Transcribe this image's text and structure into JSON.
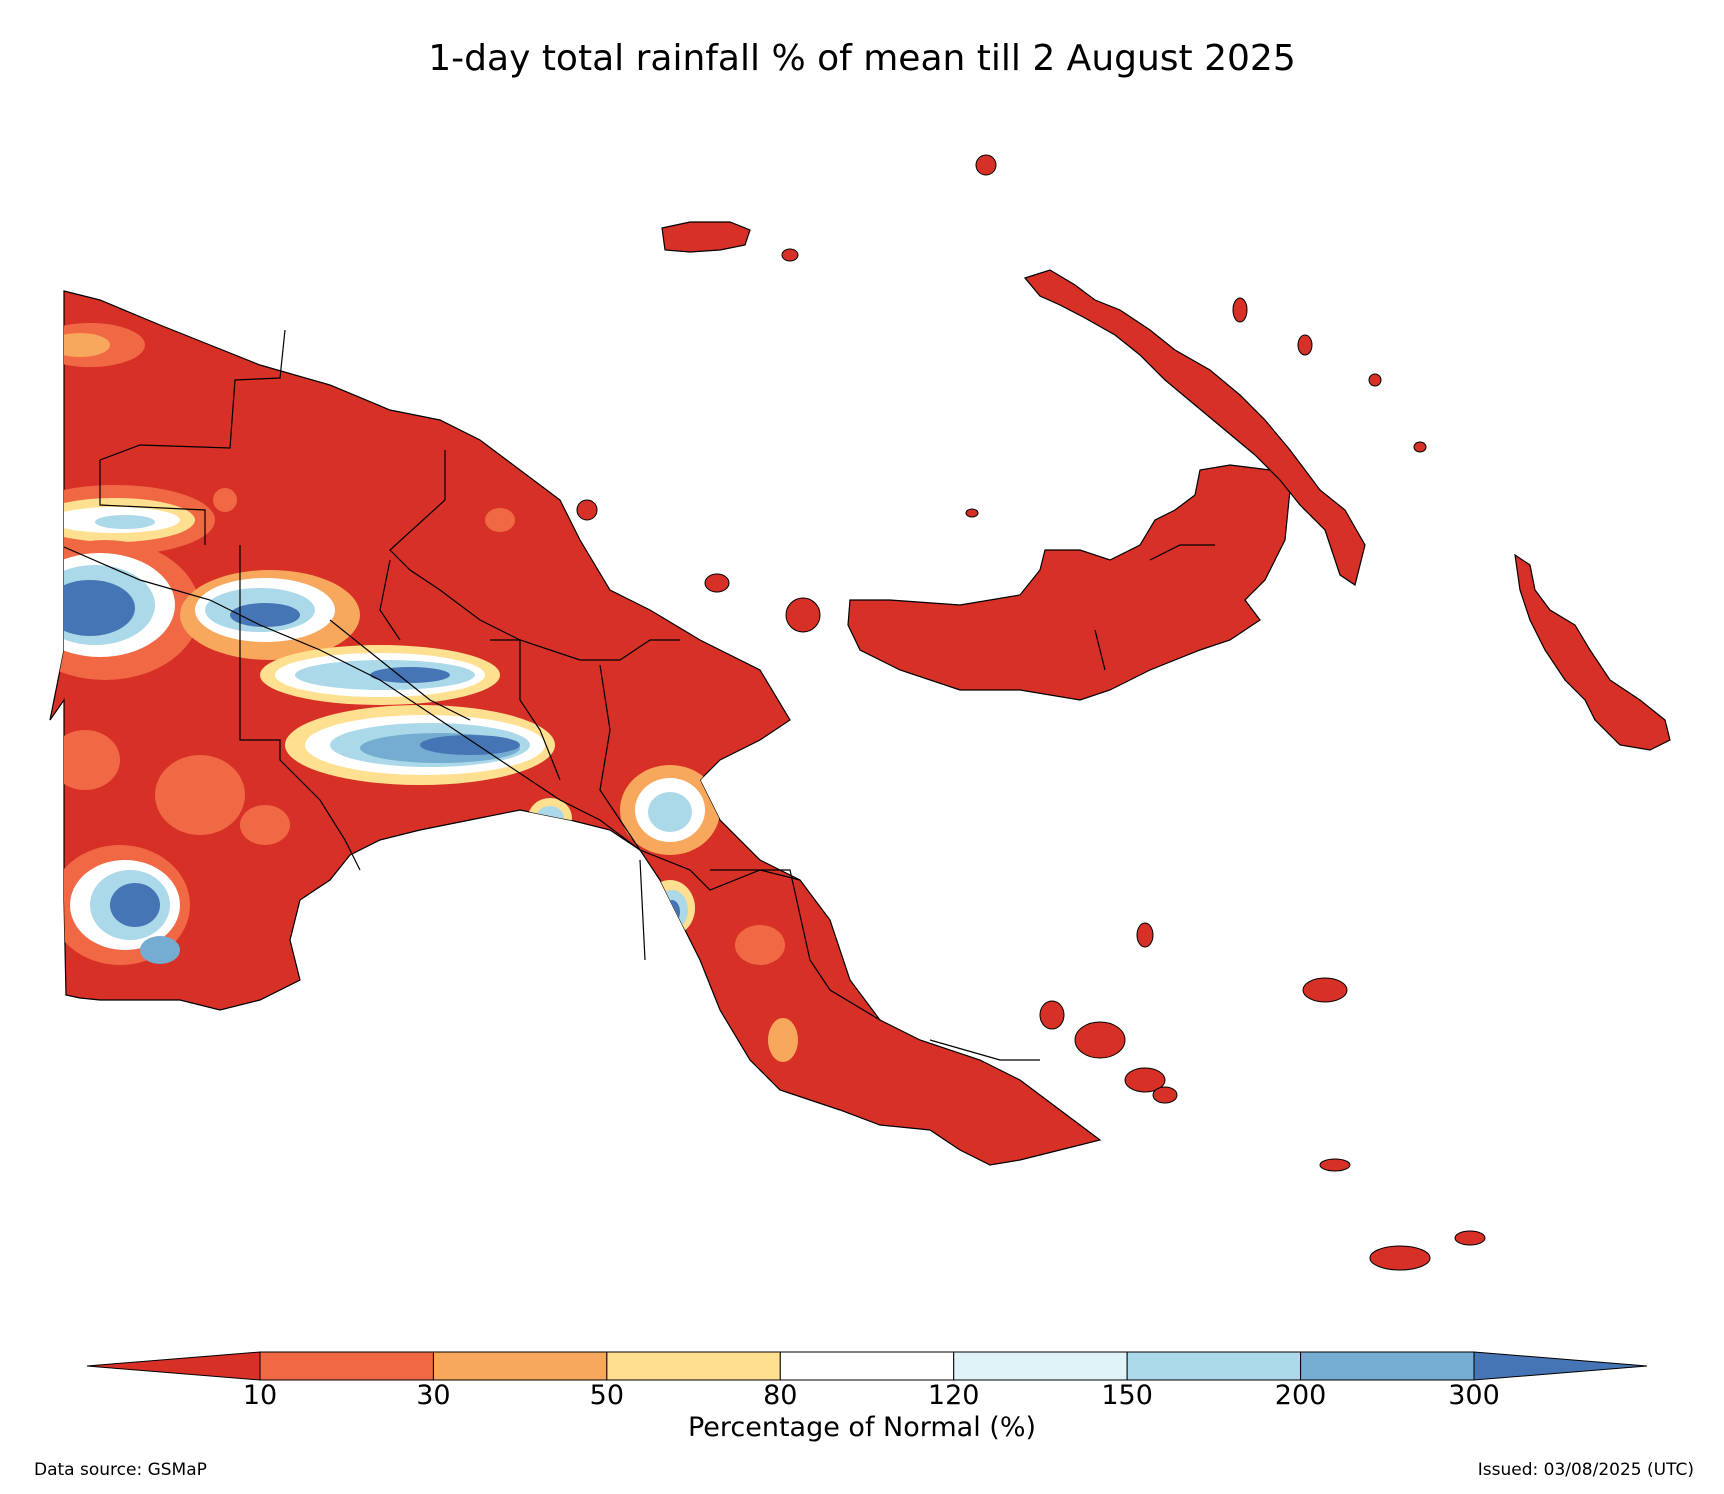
{
  "title": "1-day total rainfall % of mean till 2 August 2025",
  "colorbar": {
    "label": "Percentage of Normal (%)",
    "ticks": [
      "10",
      "30",
      "50",
      "80",
      "120",
      "150",
      "200",
      "300"
    ],
    "extend": "both",
    "colors": {
      "below_10": "#d73027",
      "10_30": "#f06944",
      "30_50": "#f8a85c",
      "50_80": "#fee090",
      "80_120": "#ffffff",
      "120_150": "#e0f3f8",
      "150_200": "#abd9e9",
      "200_300": "#74add1",
      "above_300": "#4575b4"
    }
  },
  "footer": {
    "source": "Data source: GSMaP",
    "issued": "Issued: 03/08/2025 (UTC)"
  }
}
